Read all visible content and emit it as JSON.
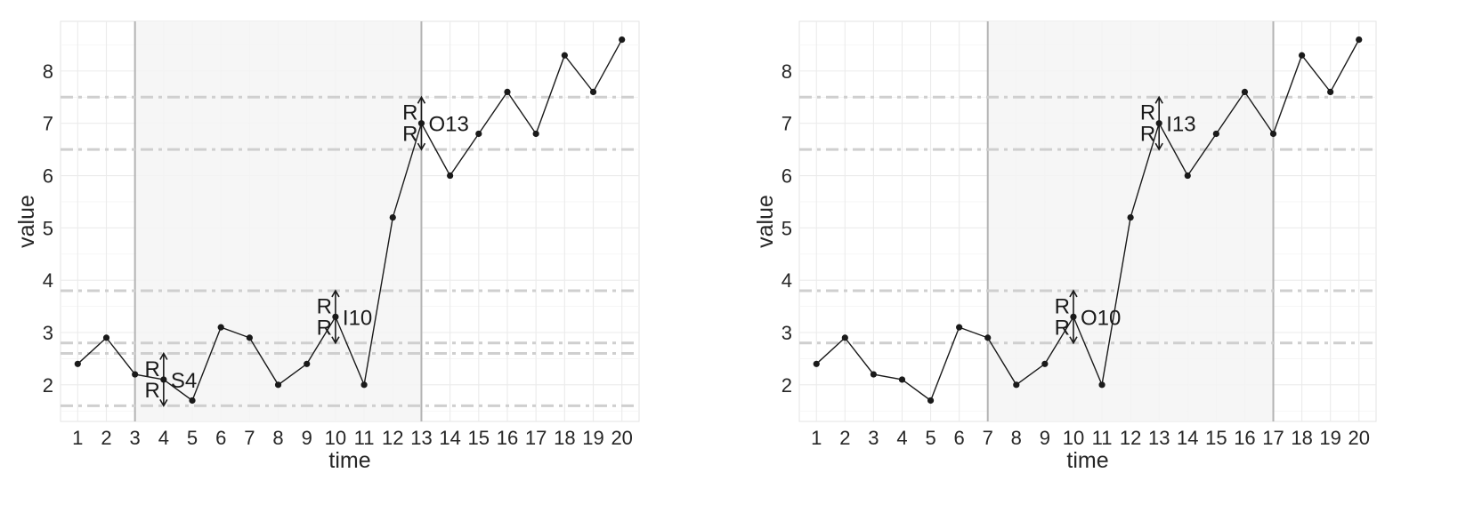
{
  "chart_data": [
    {
      "type": "line",
      "xlabel": "time",
      "ylabel": "value",
      "x": [
        1,
        2,
        3,
        4,
        5,
        6,
        7,
        8,
        9,
        10,
        11,
        12,
        13,
        14,
        15,
        16,
        17,
        18,
        19,
        20
      ],
      "values": [
        2.4,
        2.9,
        2.2,
        2.1,
        1.7,
        3.1,
        2.9,
        2.0,
        2.4,
        3.3,
        2.0,
        5.2,
        7.0,
        6.0,
        6.8,
        7.6,
        6.8,
        8.3,
        7.6,
        8.6
      ],
      "xticks": [
        "1",
        "2",
        "3",
        "4",
        "5",
        "6",
        "7",
        "8",
        "9",
        "10",
        "11",
        "12",
        "13",
        "14",
        "15",
        "16",
        "17",
        "18",
        "19",
        "20"
      ],
      "yticks": [
        2,
        3,
        4,
        5,
        6,
        7,
        8
      ],
      "ylim": [
        1.3,
        8.95
      ],
      "xlim": [
        0.4,
        20.6
      ],
      "shaded_region": [
        3,
        13
      ],
      "reference_lines": [
        1.6,
        2.6,
        2.8,
        3.8,
        6.5,
        7.5
      ],
      "annotations": [
        {
          "x": 4,
          "y": 2.1,
          "label": "S4",
          "upper": 2.6,
          "lower": 1.6,
          "r_top": "R",
          "r_bottom": "R"
        },
        {
          "x": 10,
          "y": 3.3,
          "label": "I10",
          "upper": 3.8,
          "lower": 2.8,
          "r_top": "R",
          "r_bottom": "R"
        },
        {
          "x": 13,
          "y": 7.0,
          "label": "O13",
          "upper": 7.5,
          "lower": 6.5,
          "r_top": "R",
          "r_bottom": "R"
        }
      ],
      "grid": true
    },
    {
      "type": "line",
      "xlabel": "time",
      "ylabel": "value",
      "x": [
        1,
        2,
        3,
        4,
        5,
        6,
        7,
        8,
        9,
        10,
        11,
        12,
        13,
        14,
        15,
        16,
        17,
        18,
        19,
        20
      ],
      "values": [
        2.4,
        2.9,
        2.2,
        2.1,
        1.7,
        3.1,
        2.9,
        2.0,
        2.4,
        3.3,
        2.0,
        5.2,
        7.0,
        6.0,
        6.8,
        7.6,
        6.8,
        8.3,
        7.6,
        8.6
      ],
      "xticks": [
        "1",
        "2",
        "3",
        "4",
        "5",
        "6",
        "7",
        "8",
        "9",
        "10",
        "11",
        "12",
        "13",
        "14",
        "15",
        "16",
        "17",
        "18",
        "19",
        "20"
      ],
      "yticks": [
        2,
        3,
        4,
        5,
        6,
        7,
        8
      ],
      "ylim": [
        1.3,
        8.95
      ],
      "xlim": [
        0.4,
        20.6
      ],
      "shaded_region": [
        7,
        17
      ],
      "reference_lines": [
        2.8,
        3.8,
        6.5,
        7.5
      ],
      "annotations": [
        {
          "x": 10,
          "y": 3.3,
          "label": "O10",
          "upper": 3.8,
          "lower": 2.8,
          "r_top": "R",
          "r_bottom": "R"
        },
        {
          "x": 13,
          "y": 7.0,
          "label": "I13",
          "upper": 7.5,
          "lower": 6.5,
          "r_top": "R",
          "r_bottom": "R"
        }
      ],
      "grid": true
    }
  ]
}
